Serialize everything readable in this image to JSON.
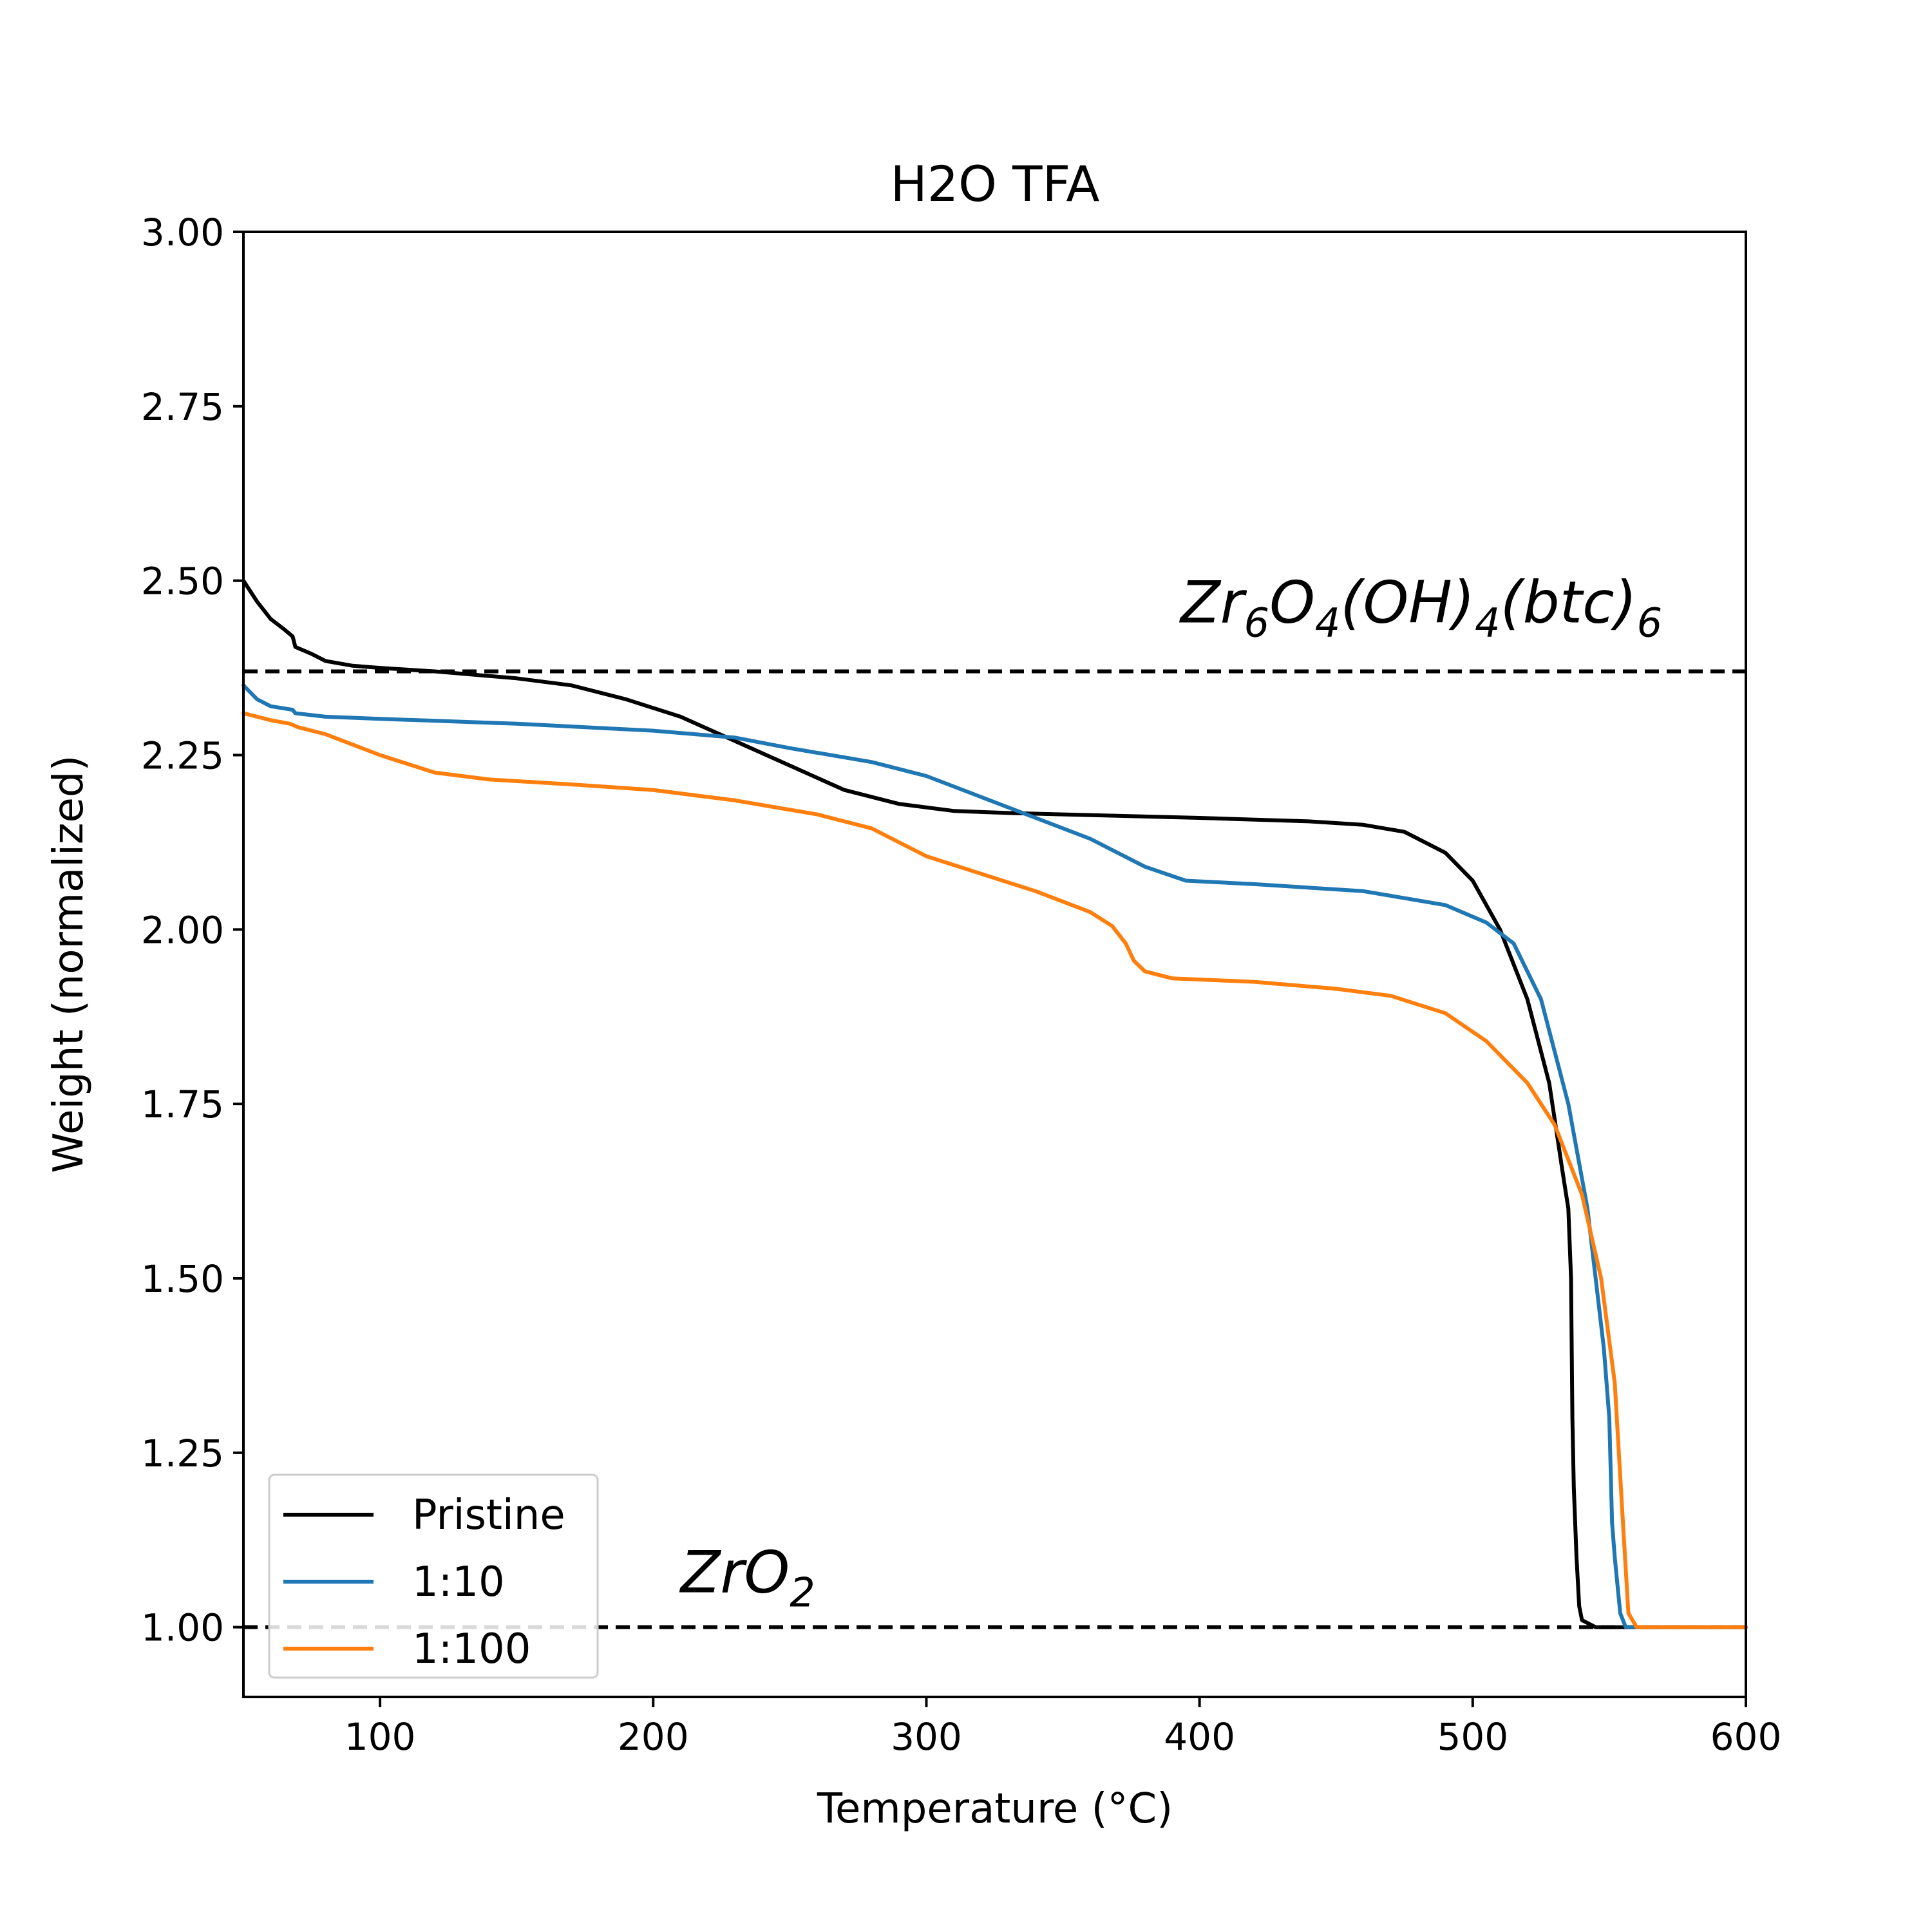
{
  "chart_data": {
    "type": "line",
    "title": "H2O TFA",
    "xlabel": "Temperature (°C)",
    "ylabel": "Weight (normalized)",
    "xlim": [
      50,
      600
    ],
    "ylim": [
      0.9,
      3.0
    ],
    "xticks": [
      100,
      200,
      300,
      400,
      500,
      600
    ],
    "xtick_labels": [
      "100",
      "200",
      "300",
      "400",
      "500",
      "600"
    ],
    "yticks": [
      1.0,
      1.25,
      1.5,
      1.75,
      2.0,
      2.25,
      2.5,
      2.75,
      3.0
    ],
    "ytick_labels": [
      "1.00",
      "1.25",
      "1.50",
      "1.75",
      "2.00",
      "2.25",
      "2.50",
      "2.75",
      "3.00"
    ],
    "grid": false,
    "legend_position": "lower-left",
    "reference_lines": [
      {
        "y": 2.37,
        "style": "dashed",
        "color": "#000000"
      },
      {
        "y": 1.0,
        "style": "dashed",
        "color": "#000000"
      }
    ],
    "annotations": [
      {
        "base": "Zr",
        "parts": [
          [
            "Zr",
            ""
          ],
          [
            "6",
            "sub"
          ],
          [
            "O",
            ""
          ],
          [
            "4",
            "sub"
          ],
          [
            "(OH)",
            ""
          ],
          [
            "4",
            "sub"
          ],
          [
            "(btc)",
            ""
          ],
          [
            "6",
            "sub"
          ]
        ],
        "x": 393,
        "y": 2.44
      },
      {
        "base": "ZrO",
        "parts": [
          [
            "ZrO",
            ""
          ],
          [
            "2",
            "sub"
          ]
        ],
        "x": 210,
        "y": 1.05
      }
    ],
    "series": [
      {
        "name": "Pristine",
        "color": "#000000",
        "points": [
          [
            50,
            2.5
          ],
          [
            55,
            2.47
          ],
          [
            60,
            2.445
          ],
          [
            65,
            2.43
          ],
          [
            68,
            2.42
          ],
          [
            69,
            2.405
          ],
          [
            75,
            2.395
          ],
          [
            80,
            2.385
          ],
          [
            90,
            2.378
          ],
          [
            100,
            2.375
          ],
          [
            120,
            2.37
          ],
          [
            150,
            2.36
          ],
          [
            170,
            2.35
          ],
          [
            190,
            2.33
          ],
          [
            210,
            2.305
          ],
          [
            230,
            2.27
          ],
          [
            250,
            2.235
          ],
          [
            270,
            2.2
          ],
          [
            290,
            2.18
          ],
          [
            310,
            2.17
          ],
          [
            330,
            2.167
          ],
          [
            350,
            2.165
          ],
          [
            400,
            2.16
          ],
          [
            440,
            2.155
          ],
          [
            460,
            2.15
          ],
          [
            475,
            2.14
          ],
          [
            490,
            2.11
          ],
          [
            500,
            2.07
          ],
          [
            510,
            2.0
          ],
          [
            520,
            1.9
          ],
          [
            528,
            1.78
          ],
          [
            533,
            1.65
          ],
          [
            535,
            1.6
          ],
          [
            536,
            1.5
          ],
          [
            536.5,
            1.3
          ],
          [
            537,
            1.2
          ],
          [
            538,
            1.1
          ],
          [
            539,
            1.03
          ],
          [
            540,
            1.01
          ],
          [
            545,
            1.0
          ],
          [
            600,
            1.0
          ]
        ]
      },
      {
        "name": "1:10",
        "color": "#1f77b4",
        "points": [
          [
            50,
            2.35
          ],
          [
            55,
            2.33
          ],
          [
            60,
            2.32
          ],
          [
            68,
            2.315
          ],
          [
            69,
            2.31
          ],
          [
            80,
            2.305
          ],
          [
            100,
            2.302
          ],
          [
            150,
            2.295
          ],
          [
            200,
            2.285
          ],
          [
            230,
            2.275
          ],
          [
            250,
            2.26
          ],
          [
            280,
            2.24
          ],
          [
            300,
            2.22
          ],
          [
            320,
            2.19
          ],
          [
            340,
            2.16
          ],
          [
            360,
            2.13
          ],
          [
            380,
            2.09
          ],
          [
            395,
            2.07
          ],
          [
            420,
            2.065
          ],
          [
            460,
            2.055
          ],
          [
            490,
            2.035
          ],
          [
            505,
            2.01
          ],
          [
            515,
            1.98
          ],
          [
            525,
            1.9
          ],
          [
            535,
            1.75
          ],
          [
            542,
            1.6
          ],
          [
            548,
            1.4
          ],
          [
            550,
            1.3
          ],
          [
            551,
            1.15
          ],
          [
            552,
            1.1
          ],
          [
            554,
            1.02
          ],
          [
            556,
            1.0
          ],
          [
            600,
            1.0
          ]
        ]
      },
      {
        "name": "1:100",
        "color": "#ff7f0e",
        "points": [
          [
            50,
            2.31
          ],
          [
            55,
            2.305
          ],
          [
            60,
            2.3
          ],
          [
            67,
            2.295
          ],
          [
            70,
            2.29
          ],
          [
            80,
            2.28
          ],
          [
            100,
            2.25
          ],
          [
            120,
            2.225
          ],
          [
            140,
            2.215
          ],
          [
            170,
            2.208
          ],
          [
            200,
            2.2
          ],
          [
            230,
            2.185
          ],
          [
            260,
            2.165
          ],
          [
            280,
            2.145
          ],
          [
            300,
            2.105
          ],
          [
            320,
            2.08
          ],
          [
            340,
            2.055
          ],
          [
            360,
            2.025
          ],
          [
            368,
            2.005
          ],
          [
            373,
            1.98
          ],
          [
            376,
            1.955
          ],
          [
            380,
            1.94
          ],
          [
            390,
            1.93
          ],
          [
            420,
            1.925
          ],
          [
            450,
            1.915
          ],
          [
            470,
            1.905
          ],
          [
            490,
            1.88
          ],
          [
            505,
            1.84
          ],
          [
            520,
            1.78
          ],
          [
            530,
            1.72
          ],
          [
            540,
            1.62
          ],
          [
            547,
            1.5
          ],
          [
            552,
            1.35
          ],
          [
            555,
            1.15
          ],
          [
            557,
            1.02
          ],
          [
            560,
            1.0
          ],
          [
            600,
            1.0
          ]
        ]
      }
    ]
  }
}
